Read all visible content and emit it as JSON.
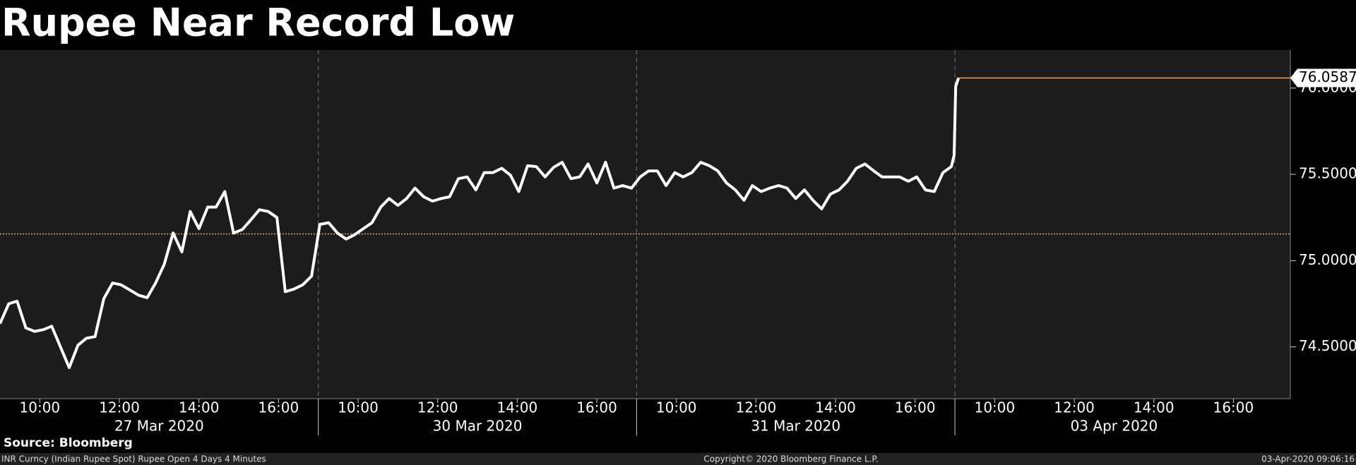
{
  "chart_data": {
    "type": "line",
    "title": "Rupee Near Record Low",
    "source": "Source: Bloomberg",
    "footer_left": "INR Curncy (Indian Rupee Spot) Rupee Open 4 Days 4 Minutes",
    "footer_center": "Copyright© 2020 Bloomberg Finance L.P.",
    "footer_right": "03-Apr-2020 09:06:16",
    "x": [
      0,
      0.22,
      0.43,
      0.65,
      0.87,
      1.09,
      1.3,
      1.52,
      1.74,
      1.96,
      2.17,
      2.39,
      2.61,
      2.83,
      3.04,
      3.26,
      3.48,
      3.7,
      3.91,
      4.13,
      4.35,
      4.57,
      4.78,
      5,
      5.22,
      5.43,
      5.65,
      5.87,
      6.09,
      6.3,
      6.52,
      6.74,
      6.96,
      7.17,
      7.39,
      7.61,
      7.83,
      8.04,
      8.26,
      8.48,
      8.7,
      8.91,
      9.13,
      9.35,
      9.57,
      9.78,
      10,
      10.22,
      10.43,
      10.65,
      10.87,
      11.09,
      11.3,
      11.52,
      11.74,
      11.96,
      12.17,
      12.39,
      12.61,
      12.83,
      13.04,
      13.26,
      13.48,
      13.7,
      13.91,
      14.13,
      14.35,
      14.57,
      14.78,
      15,
      15.22,
      15.43,
      15.65,
      15.87,
      16.09,
      16.3,
      16.52,
      16.74,
      16.96,
      17.17,
      17.39,
      17.61,
      17.83,
      18.04,
      18.26,
      18.48,
      18.7,
      18.91,
      19.13,
      19.35,
      19.57,
      19.78,
      20,
      20.22,
      20.43,
      20.65,
      20.87,
      21.09,
      21.3,
      21.52,
      21.74,
      21.96,
      22.17,
      22.39,
      22.61,
      22.83,
      23.04,
      23.26,
      23.48,
      23.7,
      23.91,
      23.98,
      24.02,
      24.09
    ],
    "series": [
      {
        "name": "INR Curncy",
        "color": "#ffffff",
        "values": [
          74.635,
          74.75,
          74.765,
          74.61,
          74.59,
          74.6,
          74.62,
          74.5,
          74.38,
          74.51,
          74.55,
          74.56,
          74.78,
          74.87,
          74.86,
          74.83,
          74.8,
          74.785,
          74.87,
          74.98,
          75.16,
          75.05,
          75.285,
          75.185,
          75.31,
          75.31,
          75.4,
          75.16,
          75.18,
          75.235,
          75.295,
          75.285,
          75.25,
          74.82,
          74.835,
          74.86,
          74.91,
          75.21,
          75.22,
          75.16,
          75.125,
          75.15,
          75.185,
          75.22,
          75.31,
          75.36,
          75.32,
          75.36,
          75.42,
          75.37,
          75.345,
          75.36,
          75.37,
          75.475,
          75.485,
          75.41,
          75.51,
          75.51,
          75.535,
          75.495,
          75.4,
          75.55,
          75.545,
          75.485,
          75.54,
          75.57,
          75.475,
          75.485,
          75.56,
          75.45,
          75.57,
          75.42,
          75.435,
          75.42,
          75.485,
          75.52,
          75.52,
          75.435,
          75.51,
          75.485,
          75.51,
          75.57,
          75.55,
          75.52,
          75.45,
          75.41,
          75.35,
          75.435,
          75.4,
          75.42,
          75.435,
          75.42,
          75.36,
          75.41,
          75.35,
          75.3,
          75.385,
          75.41,
          75.46,
          75.535,
          75.56,
          75.52,
          75.485,
          75.485,
          75.485,
          75.46,
          75.485,
          75.41,
          75.4,
          75.51,
          75.545,
          75.61,
          76.01,
          76.0587
        ]
      }
    ],
    "last_value": 76.0587,
    "last_value_color": "#f0a060",
    "reference_line": 75.155,
    "xlim": [
      0,
      32.43
    ],
    "xticks": [
      {
        "value": 1,
        "label": "10:00"
      },
      {
        "value": 3,
        "label": "12:00"
      },
      {
        "value": 5,
        "label": "14:00"
      },
      {
        "value": 7,
        "label": "16:00"
      },
      {
        "value": 9,
        "label": "10:00"
      },
      {
        "value": 11,
        "label": "12:00"
      },
      {
        "value": 13,
        "label": "14:00"
      },
      {
        "value": 15,
        "label": "16:00"
      },
      {
        "value": 17,
        "label": "10:00"
      },
      {
        "value": 19,
        "label": "12:00"
      },
      {
        "value": 21,
        "label": "14:00"
      },
      {
        "value": 23,
        "label": "16:00"
      },
      {
        "value": 25,
        "label": "10:00"
      },
      {
        "value": 27,
        "label": "12:00"
      },
      {
        "value": 29,
        "label": "14:00"
      },
      {
        "value": 31,
        "label": "16:00"
      }
    ],
    "days": [
      {
        "value": 4,
        "label": "27 Mar 2020"
      },
      {
        "value": 12,
        "label": "30 Mar 2020"
      },
      {
        "value": 20,
        "label": "31 Mar 2020"
      },
      {
        "value": 28,
        "label": "03 Apr 2020"
      }
    ],
    "day_dividers": [
      8,
      16,
      24
    ],
    "ylim": [
      74.2,
      76.22
    ],
    "yticks": [
      {
        "value": 74.5,
        "label": "74.5000"
      },
      {
        "value": 75,
        "label": "75.0000"
      },
      {
        "value": 75.5,
        "label": "75.5000"
      },
      {
        "value": 76,
        "label": "76.0000"
      }
    ]
  }
}
